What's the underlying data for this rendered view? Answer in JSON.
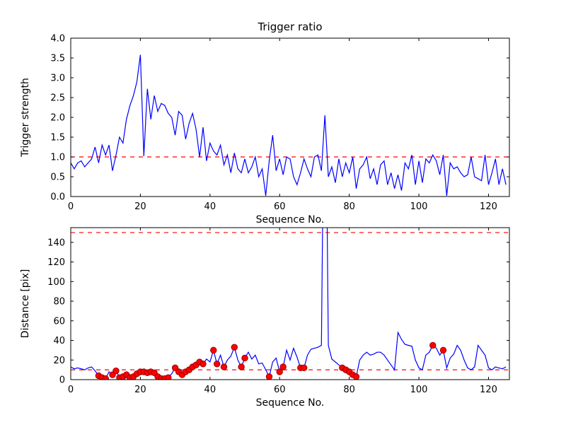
{
  "figure": {
    "bg": "#ffffff",
    "line_color": "#0000ff",
    "threshold_color": "#ff0000",
    "marker_fill": "#ff0000",
    "marker_edge": "#990000",
    "axes_color": "#000000"
  },
  "chart_data": [
    {
      "type": "line",
      "title": "Trigger ratio",
      "xlabel": "Sequence No.",
      "ylabel": "Trigger strength",
      "xlim": [
        0,
        126
      ],
      "ylim": [
        0,
        4.0
      ],
      "xticks": [
        0,
        20,
        40,
        60,
        80,
        100,
        120
      ],
      "yticks": [
        0.0,
        0.5,
        1.0,
        1.5,
        2.0,
        2.5,
        3.0,
        3.5,
        4.0
      ],
      "ytick_decimals": 1,
      "hlines": [
        1.0
      ],
      "legend": null,
      "grid": false,
      "values": [
        0.85,
        0.7,
        0.85,
        0.9,
        0.75,
        0.85,
        0.95,
        1.25,
        0.85,
        1.3,
        1.05,
        1.3,
        0.65,
        1.05,
        1.5,
        1.35,
        1.95,
        2.3,
        2.55,
        2.9,
        3.58,
        1.02,
        2.72,
        1.95,
        2.55,
        2.15,
        2.35,
        2.3,
        2.1,
        2.0,
        1.55,
        2.15,
        2.05,
        1.45,
        1.85,
        2.1,
        1.7,
        1.0,
        1.75,
        0.9,
        1.35,
        1.15,
        1.05,
        1.3,
        0.8,
        1.05,
        0.6,
        1.1,
        0.7,
        0.6,
        0.95,
        0.6,
        0.75,
        1.0,
        0.5,
        0.7,
        0.02,
        0.9,
        1.55,
        0.65,
        0.95,
        0.55,
        1.0,
        0.95,
        0.5,
        0.3,
        0.6,
        0.95,
        0.7,
        0.5,
        1.0,
        1.05,
        0.65,
        2.05,
        0.5,
        0.75,
        0.35,
        0.95,
        0.5,
        0.85,
        0.6,
        1.0,
        0.2,
        0.7,
        0.8,
        1.0,
        0.45,
        0.7,
        0.3,
        0.8,
        0.9,
        0.3,
        0.6,
        0.2,
        0.55,
        0.15,
        0.85,
        0.7,
        1.05,
        0.3,
        0.9,
        0.35,
        0.95,
        0.85,
        1.05,
        0.9,
        0.55,
        1.05,
        0.02,
        0.85,
        0.7,
        0.75,
        0.6,
        0.5,
        0.55,
        1.0,
        0.5,
        0.45,
        0.4,
        1.05,
        0.3,
        0.6,
        0.95,
        0.3,
        0.7,
        0.3
      ]
    },
    {
      "type": "line",
      "title": "",
      "xlabel": "Sequence No.",
      "ylabel": "Distance [pix]",
      "xlim": [
        0,
        126
      ],
      "ylim": [
        0,
        155
      ],
      "xticks": [
        0,
        20,
        40,
        60,
        80,
        100,
        120
      ],
      "yticks": [
        0,
        20,
        40,
        60,
        80,
        100,
        120,
        140
      ],
      "ytick_decimals": 0,
      "hlines": [
        150,
        10
      ],
      "legend": null,
      "grid": false,
      "values": [
        13,
        11,
        12,
        11,
        10,
        12,
        13,
        9,
        4,
        2,
        1,
        8,
        5,
        9,
        2,
        3,
        5,
        2,
        3,
        6,
        8,
        8,
        7,
        8,
        7,
        3,
        1,
        1,
        2,
        6,
        12,
        8,
        5,
        8,
        10,
        13,
        15,
        18,
        16,
        21,
        18,
        30,
        16,
        25,
        13,
        20,
        24,
        33,
        20,
        13,
        22,
        28,
        21,
        25,
        16,
        17,
        10,
        3,
        18,
        22,
        8,
        13,
        30,
        20,
        32,
        23,
        12,
        12,
        25,
        31,
        32,
        33,
        35,
        400,
        35,
        21,
        18,
        15,
        12,
        10,
        8,
        5,
        3,
        20,
        25,
        28,
        25,
        26,
        28,
        28,
        25,
        20,
        15,
        10,
        48,
        41,
        36,
        35,
        34,
        20,
        12,
        10,
        25,
        28,
        35,
        32,
        25,
        30,
        12,
        22,
        26,
        35,
        30,
        20,
        12,
        10,
        13,
        35,
        30,
        25,
        12,
        10,
        13,
        12,
        11,
        13
      ],
      "marker_indices": [
        8,
        9,
        10,
        12,
        13,
        14,
        15,
        16,
        17,
        18,
        19,
        20,
        21,
        22,
        23,
        24,
        25,
        26,
        27,
        28,
        30,
        31,
        32,
        33,
        34,
        35,
        36,
        37,
        38,
        41,
        42,
        44,
        47,
        49,
        50,
        57,
        60,
        61,
        66,
        67,
        78,
        79,
        80,
        81,
        82,
        104,
        107
      ]
    }
  ]
}
